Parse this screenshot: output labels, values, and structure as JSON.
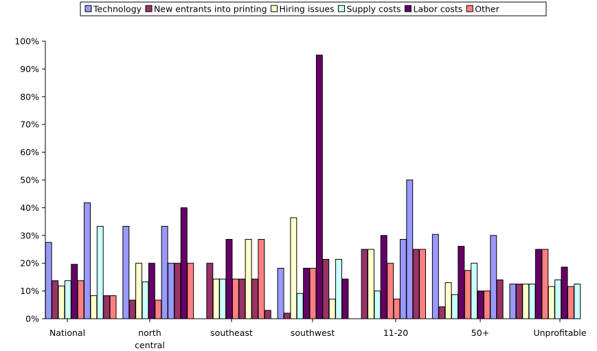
{
  "chart_data": {
    "type": "bar",
    "title": "",
    "xlabel": "",
    "ylabel": "",
    "ylim": [
      0,
      100
    ],
    "yticks": [
      "0%",
      "10%",
      "20%",
      "30%",
      "40%",
      "50%",
      "60%",
      "70%",
      "80%",
      "90%",
      "100%"
    ],
    "grid": false,
    "legend_position": "top",
    "categories": [
      "National",
      "north central",
      "southeast",
      "southwest",
      "11-20",
      "50+",
      "Unprofitable"
    ],
    "series": [
      {
        "name": "Technology",
        "color": "#9999FF",
        "values": [
          27.5,
          33.3,
          0,
          18.2,
          0,
          30.4,
          12.5
        ]
      },
      {
        "name": "New entrants into printing",
        "color": "#993366",
        "values": [
          13.7,
          6.7,
          20.0,
          2.0,
          25.0,
          4.3,
          12.5
        ]
      },
      {
        "name": "Hiring issues",
        "color": "#FFFFCC",
        "values": [
          11.8,
          20.0,
          14.3,
          36.4,
          25.0,
          13.0,
          12.5
        ]
      },
      {
        "name": "Supply costs",
        "color": "#CCFFFF",
        "values": [
          13.7,
          13.3,
          14.3,
          9.1,
          10.0,
          8.7,
          12.5
        ]
      },
      {
        "name": "Labor costs",
        "color": "#660066",
        "values": [
          19.6,
          20.0,
          28.6,
          18.2,
          30.0,
          26.1,
          25.0
        ]
      },
      {
        "name": "Other",
        "color": "#FF8080",
        "values": [
          13.7,
          6.7,
          14.3,
          18.2,
          20.0,
          17.4,
          25.0
        ]
      }
    ],
    "extra_bars": [
      {
        "color": "#9999FF",
        "value": 41.8
      },
      {
        "color": "#FFFFCC",
        "value": 8.3
      },
      {
        "color": "#CCFFFF",
        "value": 33.3
      },
      {
        "color": "#993366",
        "value": 8.3
      },
      {
        "color": "#FF8080",
        "value": 8.3
      },
      {
        "color": "#9999FF",
        "value": 33.3
      },
      {
        "color": "#9999FF",
        "value": 20.0
      },
      {
        "color": "#993366",
        "value": 20.0
      },
      {
        "color": "#660066",
        "value": 40.0
      },
      {
        "color": "#FF8080",
        "value": 20.0
      },
      {
        "color": "#993366",
        "value": 14.3
      },
      {
        "color": "#FFFFCC",
        "value": 28.6
      },
      {
        "color": "#993366",
        "value": 14.3
      },
      {
        "color": "#FF8080",
        "value": 28.6
      },
      {
        "color": "#993366",
        "value": 3.0
      },
      {
        "color": "#660066",
        "value": 95.0
      },
      {
        "color": "#993366",
        "value": 21.4
      },
      {
        "color": "#FFFFCC",
        "value": 7.1
      },
      {
        "color": "#CCFFFF",
        "value": 21.4
      },
      {
        "color": "#660066",
        "value": 14.3
      },
      {
        "color": "#FF8080",
        "value": 7.1
      },
      {
        "color": "#9999FF",
        "value": 28.6
      },
      {
        "color": "#9999FF",
        "value": 50.0
      },
      {
        "color": "#993366",
        "value": 25.0
      },
      {
        "color": "#FF8080",
        "value": 25.0
      },
      {
        "color": "#CCFFFF",
        "value": 20.0
      },
      {
        "color": "#660066",
        "value": 10.0
      },
      {
        "color": "#FF8080",
        "value": 10.0
      },
      {
        "color": "#9999FF",
        "value": 30.0
      },
      {
        "color": "#993366",
        "value": 14.0
      },
      {
        "color": "#FFFFCC",
        "value": 11.6
      },
      {
        "color": "#CCFFFF",
        "value": 14.0
      },
      {
        "color": "#660066",
        "value": 18.6
      },
      {
        "color": "#FF8080",
        "value": 11.6
      },
      {
        "color": "#CCFFFF",
        "value": 12.5
      }
    ]
  }
}
